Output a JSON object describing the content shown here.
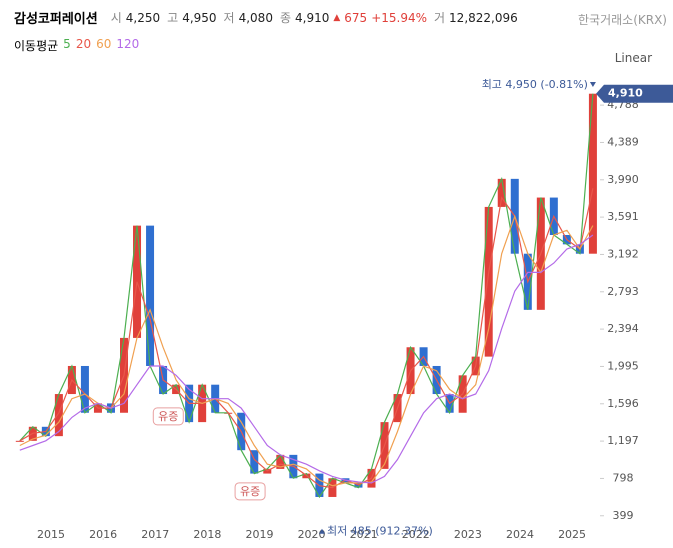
{
  "header": {
    "name": "감성코퍼레이션",
    "fields": [
      {
        "key": "시",
        "value": "4,250"
      },
      {
        "key": "고",
        "value": "4,950"
      },
      {
        "key": "저",
        "value": "4,080"
      },
      {
        "key": "종",
        "value": "4,910"
      }
    ],
    "change": "675",
    "change_pct": "+15.94%",
    "volume_key": "거",
    "volume": "12,822,096",
    "exchange": "한국거래소(KRX)",
    "scale_button": "Linear",
    "ma_title": "이동평균"
  },
  "chart_data": {
    "type": "candlestick",
    "x": [
      2014.4,
      2014.65,
      2014.9,
      2015.15,
      2015.4,
      2015.65,
      2015.9,
      2016.15,
      2016.4,
      2016.65,
      2016.9,
      2017.15,
      2017.4,
      2017.65,
      2017.9,
      2018.15,
      2018.4,
      2018.65,
      2018.9,
      2019.15,
      2019.4,
      2019.65,
      2019.9,
      2020.15,
      2020.4,
      2020.65,
      2020.9,
      2021.15,
      2021.4,
      2021.65,
      2021.9,
      2022.15,
      2022.4,
      2022.65,
      2022.9,
      2023.15,
      2023.4,
      2023.65,
      2023.9,
      2024.15,
      2024.4,
      2024.65,
      2024.9,
      2025.15,
      2025.4
    ],
    "close": [
      1200,
      1350,
      1250,
      1700,
      2000,
      1500,
      1600,
      1500,
      2300,
      3500,
      2000,
      1700,
      1800,
      1400,
      1800,
      1500,
      1500,
      1100,
      850,
      900,
      1050,
      800,
      850,
      600,
      800,
      750,
      700,
      900,
      1400,
      1700,
      2200,
      2000,
      1700,
      1500,
      1900,
      2100,
      3700,
      4000,
      3200,
      2600,
      3800,
      3400,
      3300,
      3200,
      4910
    ],
    "up_color": "#e0403a",
    "down_color": "#2f6fd0",
    "series": [
      {
        "name": "5",
        "color": "#4caf50",
        "values": [
          1200,
          1350,
          1250,
          1700,
          2000,
          1500,
          1600,
          1500,
          2300,
          3500,
          2000,
          1700,
          1800,
          1400,
          1800,
          1500,
          1500,
          1100,
          850,
          900,
          1050,
          800,
          850,
          600,
          800,
          750,
          700,
          900,
          1400,
          1700,
          2200,
          2000,
          1700,
          1500,
          1900,
          2100,
          3700,
          4000,
          3200,
          2600,
          3800,
          3400,
          3300,
          3200,
          4910
        ]
      },
      {
        "name": "20",
        "color": "#e8574a",
        "values": [
          1200,
          1280,
          1300,
          1500,
          1850,
          1700,
          1550,
          1550,
          1900,
          2900,
          2500,
          1850,
          1750,
          1600,
          1600,
          1650,
          1500,
          1300,
          1000,
          880,
          950,
          930,
          830,
          720,
          700,
          780,
          730,
          800,
          1150,
          1550,
          1950,
          2100,
          1850,
          1600,
          1700,
          2000,
          3000,
          3800,
          3600,
          2900,
          3200,
          3600,
          3350,
          3250,
          3900
        ]
      },
      {
        "name": "60",
        "color": "#f0a050",
        "values": [
          1150,
          1220,
          1260,
          1400,
          1650,
          1700,
          1600,
          1550,
          1700,
          2300,
          2600,
          2200,
          1850,
          1650,
          1600,
          1650,
          1600,
          1400,
          1150,
          950,
          920,
          950,
          900,
          780,
          720,
          750,
          750,
          760,
          950,
          1300,
          1700,
          2000,
          1950,
          1750,
          1650,
          1800,
          2400,
          3200,
          3600,
          3200,
          3000,
          3400,
          3450,
          3250,
          3500
        ]
      },
      {
        "name": "120",
        "color": "#b46be8",
        "values": [
          1100,
          1150,
          1200,
          1300,
          1450,
          1550,
          1600,
          1550,
          1600,
          1800,
          2000,
          2000,
          1900,
          1750,
          1650,
          1650,
          1650,
          1550,
          1350,
          1150,
          1050,
          1000,
          950,
          880,
          820,
          780,
          760,
          750,
          820,
          1000,
          1250,
          1500,
          1650,
          1700,
          1650,
          1700,
          1950,
          2400,
          2800,
          3000,
          3000,
          3100,
          3250,
          3300,
          3400
        ]
      }
    ],
    "xlim": [
      2014.02,
      2025.44
    ],
    "xticks": [
      2015,
      2016,
      2017,
      2018,
      2019,
      2020,
      2021,
      2022,
      2023,
      2024,
      2025
    ],
    "ylim": [
      140,
      5110
    ],
    "yticks": [
      399,
      798,
      {
        "value": 1197,
        "label": "1,197"
      },
      {
        "value": 1596,
        "label": "1,596"
      },
      {
        "value": 1995,
        "label": "1,995"
      },
      {
        "value": 2394,
        "label": "2,394"
      },
      {
        "value": 2793,
        "label": "2,793"
      },
      {
        "value": 3192,
        "label": "3,192"
      },
      {
        "value": 3591,
        "label": "3,591"
      },
      {
        "value": 3990,
        "label": "3,990"
      },
      {
        "value": 4389,
        "label": "4,389"
      },
      {
        "value": 4788,
        "label": "4,788"
      }
    ],
    "grid": false,
    "last_price": {
      "value": 4910,
      "label": "4,910"
    },
    "annotations": [
      {
        "text": "최고 4,950 (-0.81%)",
        "x": 2023.5,
        "y": 4950,
        "kind": "high"
      },
      {
        "text": "최저 485 (912.37%)",
        "x": 2020.2,
        "y": 485,
        "kind": "low"
      },
      {
        "text": "유증",
        "x": 2017.25,
        "y": 1456,
        "kind": "tag"
      },
      {
        "text": "유증",
        "x": 2018.82,
        "y": 655,
        "kind": "tag"
      }
    ]
  }
}
